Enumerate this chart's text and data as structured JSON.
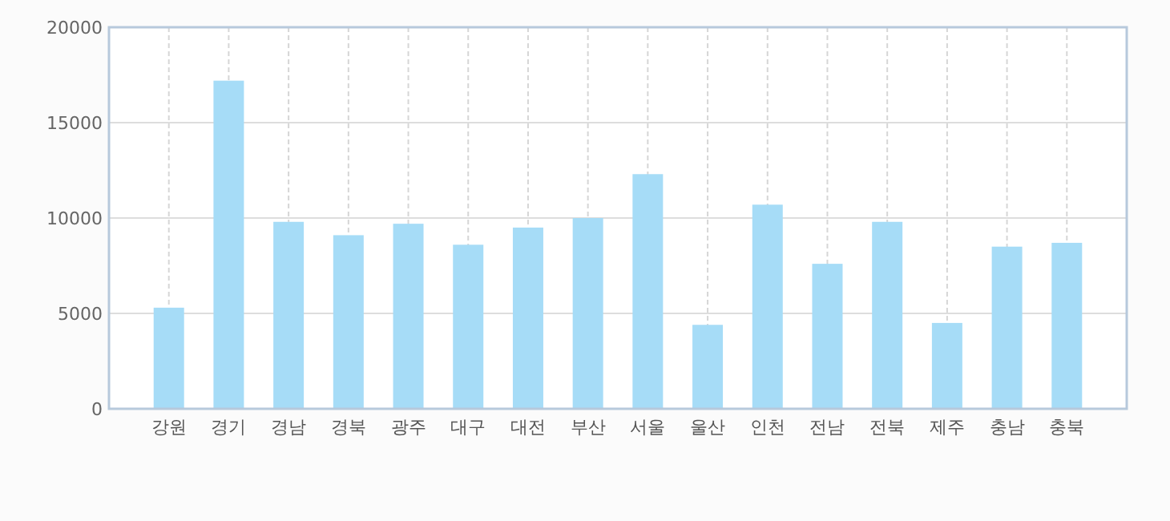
{
  "chart_data": {
    "type": "bar",
    "categories": [
      "강원",
      "경기",
      "경남",
      "경북",
      "광주",
      "대구",
      "대전",
      "부산",
      "서울",
      "울산",
      "인천",
      "전남",
      "전북",
      "제주",
      "충남",
      "충북"
    ],
    "values": [
      5300,
      17200,
      9800,
      9100,
      9700,
      8600,
      9500,
      10000,
      12300,
      4400,
      10700,
      7600,
      9800,
      4500,
      8500,
      8700
    ],
    "color": "#a6dcf7",
    "ylim": [
      0,
      20000
    ],
    "yticks": [
      0,
      5000,
      10000,
      15000,
      20000
    ],
    "grid": true
  }
}
